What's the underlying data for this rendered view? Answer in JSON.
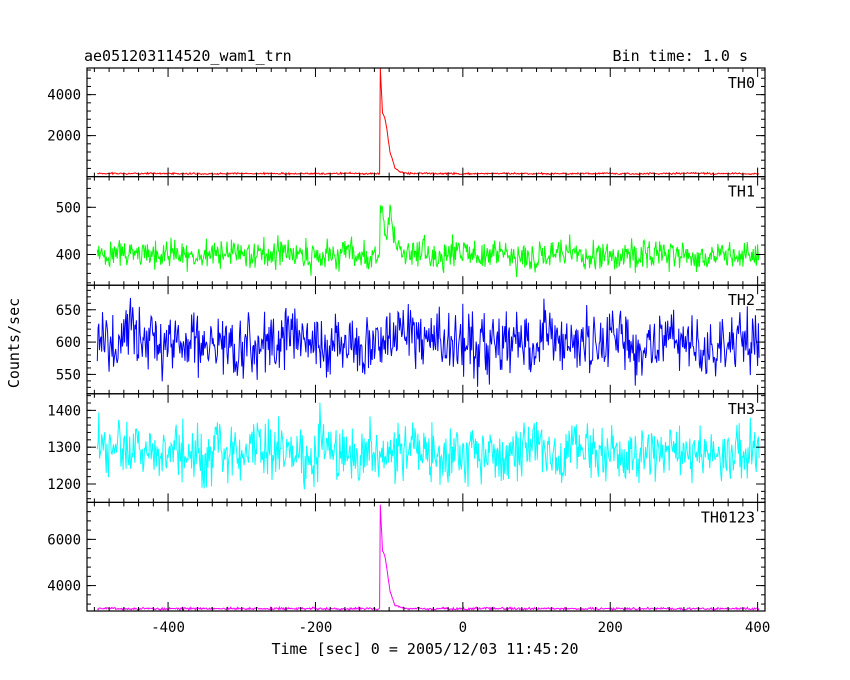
{
  "chart_data": {
    "type": "line",
    "title": "ae051203114520_wam1_trn",
    "subtitle": "Bin time: 1.0 s",
    "xlabel": "Time [sec] 0 = 2005/12/03 11:45:20",
    "ylabel": "Counts/sec",
    "xlim": [
      -510,
      410
    ],
    "xticks": [
      -400,
      -200,
      0,
      200,
      400
    ],
    "burst_time": -112,
    "grid": false,
    "panels": [
      {
        "name": "TH0",
        "color": "#ff0000",
        "ylim": [
          0,
          5300
        ],
        "yticks": [
          2000,
          4000
        ],
        "baseline": 150,
        "noise": 25,
        "burst_profile": [
          {
            "t": -112,
            "v": 5300
          },
          {
            "t": -109,
            "v": 3100
          },
          {
            "t": -106,
            "v": 2900
          },
          {
            "t": -103,
            "v": 2300
          },
          {
            "t": -99,
            "v": 1200
          },
          {
            "t": -96,
            "v": 900
          },
          {
            "t": -92,
            "v": 400
          },
          {
            "t": -85,
            "v": 220
          },
          {
            "t": -75,
            "v": 150
          }
        ]
      },
      {
        "name": "TH1",
        "color": "#00ff00",
        "ylim": [
          335,
          565
        ],
        "yticks": [
          400,
          500
        ],
        "baseline": 400,
        "noise": 18,
        "burst_profile": [
          {
            "t": -112,
            "v": 520
          },
          {
            "t": -108,
            "v": 480
          },
          {
            "t": -104,
            "v": 430
          },
          {
            "t": -99,
            "v": 500
          },
          {
            "t": -95,
            "v": 450
          },
          {
            "t": -90,
            "v": 420
          },
          {
            "t": -84,
            "v": 405
          },
          {
            "t": -75,
            "v": 400
          }
        ]
      },
      {
        "name": "TH2",
        "color": "#0000ff",
        "ylim": [
          520,
          688
        ],
        "yticks": [
          550,
          600,
          650
        ],
        "baseline": 600,
        "noise": 28,
        "burst_profile": []
      },
      {
        "name": "TH3",
        "color": "#00ffff",
        "ylim": [
          1150,
          1445
        ],
        "yticks": [
          1200,
          1300,
          1400
        ],
        "baseline": 1285,
        "noise": 45,
        "burst_profile": []
      },
      {
        "name": "TH0123",
        "color": "#ff00ff",
        "ylim": [
          2900,
          7600
        ],
        "yticks": [
          4000,
          6000
        ],
        "baseline": 3000,
        "noise": 30,
        "burst_profile": [
          {
            "t": -112,
            "v": 7500
          },
          {
            "t": -109,
            "v": 5500
          },
          {
            "t": -106,
            "v": 5300
          },
          {
            "t": -103,
            "v": 4700
          },
          {
            "t": -99,
            "v": 3800
          },
          {
            "t": -96,
            "v": 3500
          },
          {
            "t": -92,
            "v": 3150
          },
          {
            "t": -85,
            "v": 3050
          },
          {
            "t": -75,
            "v": 3000
          }
        ]
      }
    ]
  }
}
